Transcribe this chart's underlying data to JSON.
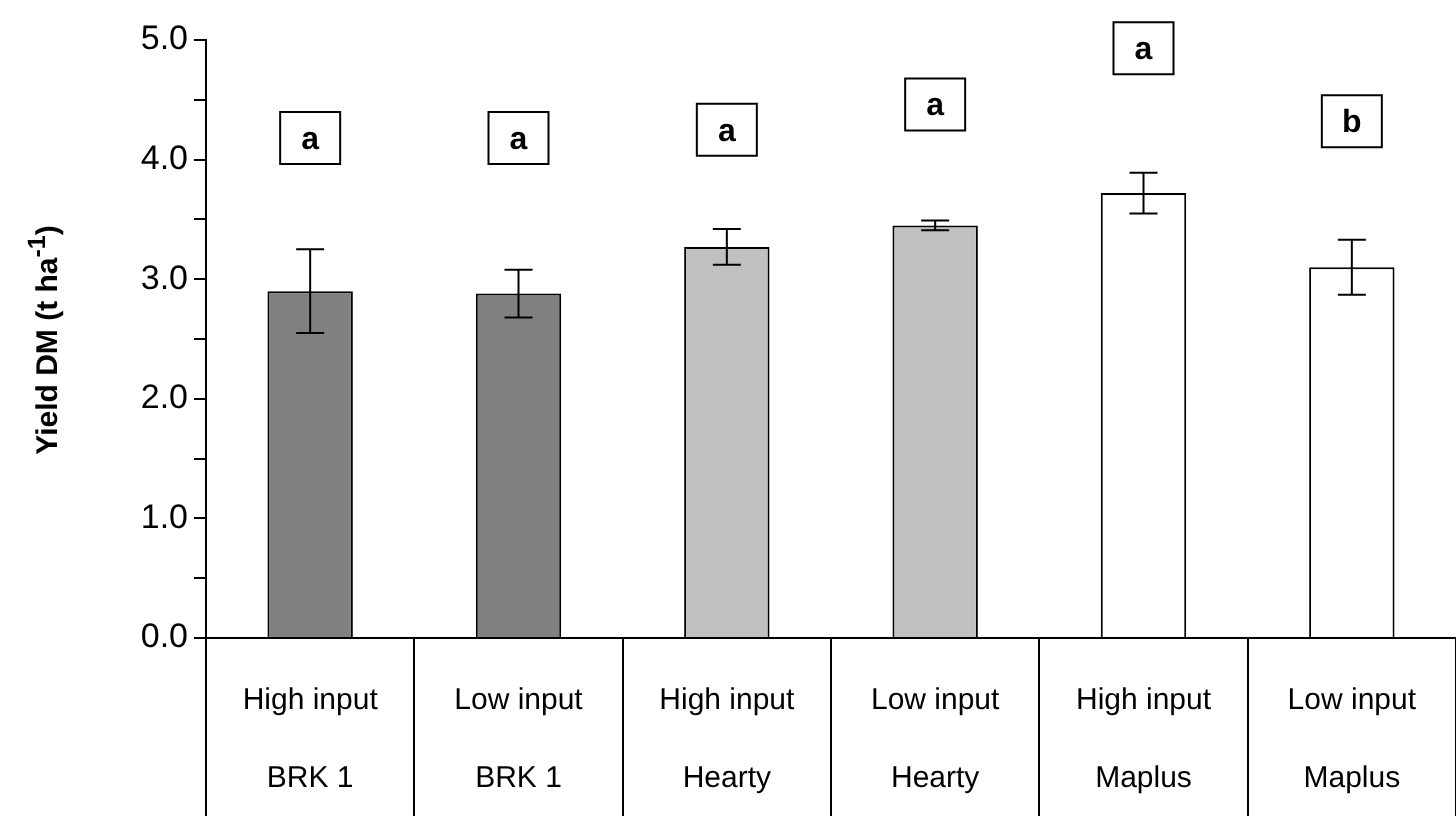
{
  "chart_data": {
    "type": "bar",
    "ylabel": "Yield DM (t ha$^{-1}$)",
    "categories": [
      "High input\nBRK 1",
      "Low input\nBRK 1",
      "High input\nHearty",
      "Low input\nHearty",
      "High input\nMaplus",
      "Low input\nMaplus"
    ],
    "values": [
      2.9,
      2.88,
      3.27,
      3.45,
      3.72,
      3.1
    ],
    "errors": [
      0.35,
      0.2,
      0.15,
      0.04,
      0.17,
      0.23
    ],
    "colors": [
      "#808080",
      "#808080",
      "#c0c0c0",
      "#c0c0c0",
      "#ffffff",
      "#ffffff"
    ],
    "ylim": [
      0,
      5
    ],
    "yticks": [
      {
        "value": 0,
        "label": "0.0"
      },
      {
        "value": 0.5,
        "label": null
      },
      {
        "value": 1,
        "label": "1.0"
      },
      {
        "value": 1.5,
        "label": null
      },
      {
        "value": 2,
        "label": "2.0"
      },
      {
        "value": 2.5,
        "label": null
      },
      {
        "value": 3,
        "label": "3.0"
      },
      {
        "value": 3.5,
        "label": null
      },
      {
        "value": 4,
        "label": "4.0"
      },
      {
        "value": 4.5,
        "label": null
      },
      {
        "value": 5,
        "label": "5.0"
      }
    ],
    "annotations": [
      {
        "text": "a",
        "x": "High input\nBRK 1",
        "y": 4.18
      },
      {
        "text": "a",
        "x": "Low input\nBRK 1",
        "y": 4.18
      },
      {
        "text": "a",
        "x": "High input\nHearty",
        "y": 4.25
      },
      {
        "text": "a",
        "x": "Low input\nHearty",
        "y": 4.46
      },
      {
        "text": "a",
        "x": "High input\nMaplus",
        "y": 4.93
      },
      {
        "text": "b",
        "x": "Low input\nMaplus",
        "y": 4.32
      }
    ],
    "legend": false
  }
}
